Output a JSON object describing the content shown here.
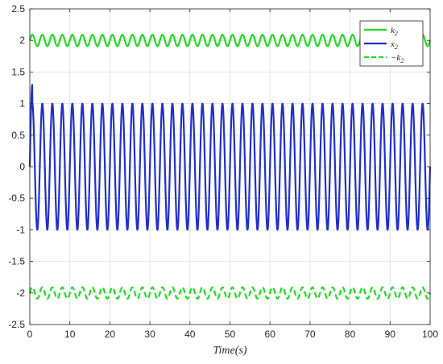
{
  "chart_data": {
    "type": "line",
    "title": "",
    "xlabel": "Time(s)",
    "ylabel": "",
    "xlim": [
      0,
      100
    ],
    "ylim": [
      -2.5,
      2.5
    ],
    "xticks": [
      0,
      10,
      20,
      30,
      40,
      50,
      60,
      70,
      80,
      90,
      100
    ],
    "yticks": [
      -2.5,
      -2,
      -1.5,
      -1,
      -0.5,
      0,
      0.5,
      1,
      1.5,
      2,
      2.5
    ],
    "xtick_labels": [
      "0",
      "10",
      "20",
      "30",
      "40",
      "50",
      "60",
      "70",
      "80",
      "90",
      "100"
    ],
    "ytick_labels": [
      "-2.5",
      "-2",
      "-1.5",
      "-1",
      "-0.5",
      "0",
      "0.5",
      "1",
      "1.5",
      "2",
      "2.5"
    ],
    "grid": true,
    "legend_position": "top-right",
    "series": [
      {
        "name": "k2",
        "legend_base": "k",
        "legend_sub": "2",
        "color": "#22dd22",
        "style": "solid",
        "center": 2.0,
        "amplitude": 0.09,
        "period": 2.5,
        "phase": 0
      },
      {
        "name": "x2",
        "legend_base": "x",
        "legend_sub": "2",
        "color": "#1f2fcf",
        "style": "solid",
        "center": 0,
        "amplitude": 1.0,
        "period": 2.5,
        "phase": 0,
        "initial_peak": 1.3
      },
      {
        "name": "-k2",
        "legend_base": "−k",
        "legend_sub": "2",
        "color": "#22dd22",
        "style": "dashed",
        "center": -2.0,
        "amplitude": 0.09,
        "period": 2.5,
        "phase": 0
      }
    ]
  }
}
